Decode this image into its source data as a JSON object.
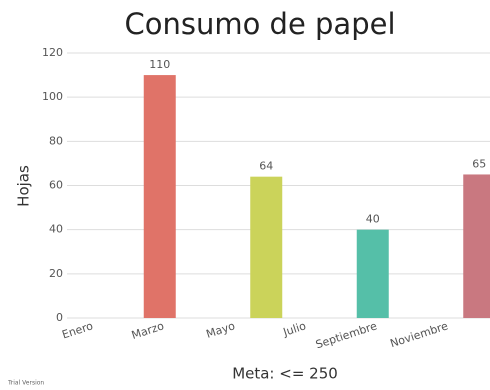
{
  "chart_data": {
    "type": "bar",
    "title": "Consumo de papel",
    "y_label": "Hojas",
    "x_label": "Meta: <= 250",
    "footnote": "Trial Version",
    "categories": [
      "Enero",
      null,
      "Marzo",
      null,
      "Mayo",
      null,
      "Julio",
      null,
      "Septiembre",
      null,
      "Noviembre",
      null
    ],
    "values": [
      null,
      null,
      110,
      null,
      null,
      64,
      null,
      null,
      40,
      null,
      null,
      65
    ],
    "colors": [
      null,
      null,
      "#e07368",
      null,
      null,
      "#cbd35a",
      null,
      null,
      "#55bfa8",
      null,
      null,
      "#c97880"
    ],
    "ylim": [
      0,
      120
    ],
    "yticks": [
      0,
      20,
      40,
      60,
      80,
      100,
      120
    ],
    "grid": true
  }
}
